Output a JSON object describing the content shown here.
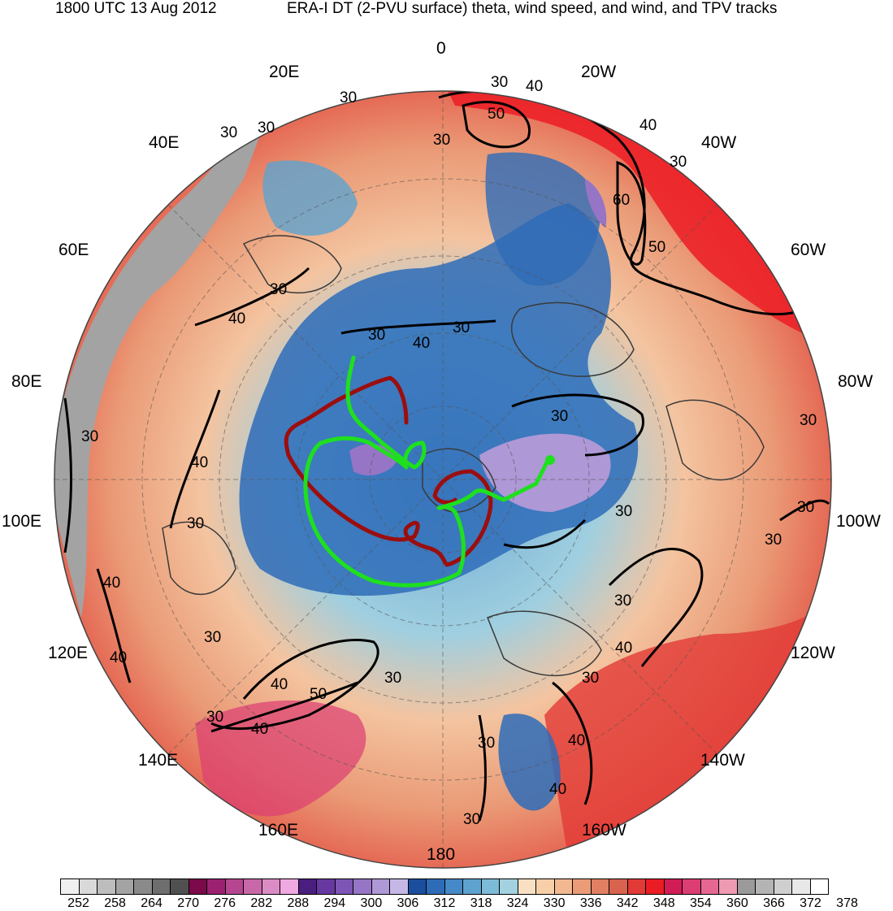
{
  "title": {
    "left": "1800 UTC 13 Aug 2012",
    "right": "ERA-I DT (2-PVU surface) theta, wind speed, and wind, and TPV tracks"
  },
  "longitude_labels": [
    "0",
    "20W",
    "40W",
    "60W",
    "80W",
    "100W",
    "120W",
    "140W",
    "160W",
    "180",
    "160E",
    "140E",
    "120E",
    "100E",
    "80E",
    "60E",
    "40E",
    "20E"
  ],
  "contour_labels": [
    "30",
    "40",
    "50",
    "60"
  ],
  "colorbar": {
    "labels": [
      "252",
      "258",
      "264",
      "270",
      "276",
      "282",
      "288",
      "294",
      "300",
      "306",
      "312",
      "318",
      "324",
      "330",
      "336",
      "342",
      "348",
      "354",
      "360",
      "366",
      "372",
      "378"
    ],
    "colors": [
      "#f0f0f0",
      "#d9d9d9",
      "#bdbdbd",
      "#a3a3a3",
      "#8a8a8a",
      "#6e6e6e",
      "#505050",
      "#7b0a4a",
      "#9c2170",
      "#b6468f",
      "#c968a8",
      "#dc8cc4",
      "#f0a8e0",
      "#4a1e7e",
      "#6638a0",
      "#7d55b4",
      "#9675c6",
      "#ae98d6",
      "#c6b8e6",
      "#1b4f9e",
      "#2e6cb8",
      "#4589c6",
      "#5ea3cf",
      "#7dbcd8",
      "#a2d2e0",
      "#f9e0c3",
      "#f7cfa8",
      "#f2b890",
      "#eb9c77",
      "#e07f61",
      "#d8634f",
      "#e23a36",
      "#ec1c24",
      "#d21c55",
      "#dc3d72",
      "#e66892",
      "#ee9ab2",
      "#9a9a9a",
      "#b4b4b4",
      "#cfcfcf",
      "#e8e8e8",
      "#ffffff"
    ]
  },
  "tracks": {
    "colors": {
      "tpv1": "#9b0e0e",
      "tpv2": "#1ee01e"
    }
  }
}
